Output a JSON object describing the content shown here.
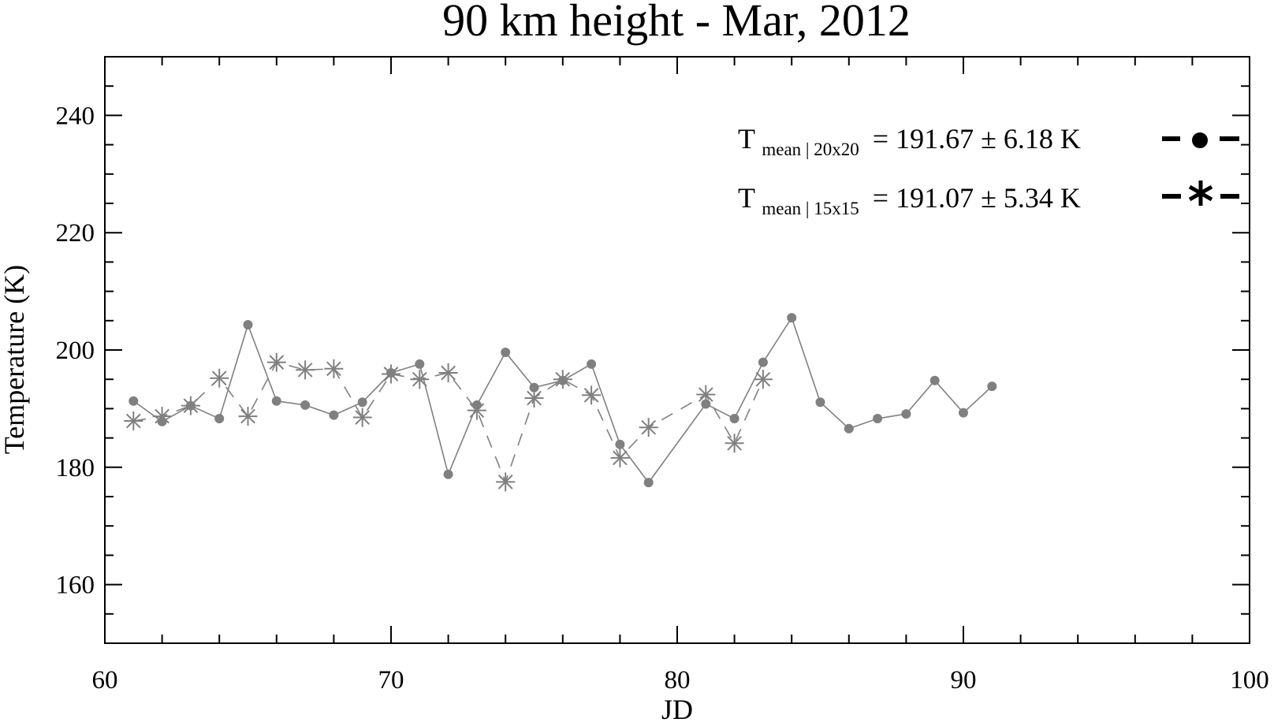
{
  "chart_data": {
    "type": "line",
    "title": "90 km height - Mar, 2012",
    "xlabel": "JD",
    "ylabel": "Temperature (K)",
    "xlim": [
      60,
      100
    ],
    "ylim": [
      150,
      250
    ],
    "x_ticks": [
      60,
      70,
      80,
      90,
      100
    ],
    "y_ticks": [
      160,
      180,
      200,
      220,
      240
    ],
    "grid": false,
    "legend_position": "top-right",
    "series": [
      {
        "marker": "dot",
        "line_style": "solid",
        "color": "#808080",
        "legend_prefix": "T",
        "legend_subscript": "mean | 20x20",
        "legend_value": "= 191.67 ± 6.18 K",
        "x": [
          61,
          62,
          63,
          64,
          65,
          66,
          67,
          68,
          69,
          70,
          71,
          72,
          73,
          74,
          75,
          76,
          77,
          78,
          79,
          81,
          82,
          83,
          84,
          85,
          86,
          87,
          88,
          89,
          90,
          91
        ],
        "y": [
          191.3,
          187.8,
          190.5,
          188.3,
          204.3,
          191.3,
          190.6,
          188.9,
          191.1,
          196.1,
          197.6,
          178.8,
          190.6,
          199.6,
          193.6,
          194.8,
          197.6,
          183.9,
          177.4,
          190.8,
          188.3,
          197.9,
          205.5,
          191.1,
          186.6,
          188.3,
          189.1,
          194.8,
          189.3,
          193.8
        ]
      },
      {
        "marker": "asterisk",
        "line_style": "dashed",
        "color": "#808080",
        "legend_prefix": "T",
        "legend_subscript": "mean | 15x15",
        "legend_value": "= 191.07 ± 5.34 K",
        "x": [
          61,
          62,
          63,
          64,
          65,
          66,
          67,
          68,
          69,
          70,
          71,
          72,
          73,
          74,
          75,
          76,
          77,
          78,
          79,
          81,
          82,
          83
        ],
        "y": [
          187.9,
          188.7,
          190.5,
          195.2,
          188.7,
          197.9,
          196.6,
          196.8,
          188.5,
          195.9,
          195.0,
          196.1,
          189.7,
          177.5,
          191.8,
          195.0,
          192.3,
          181.6,
          186.8,
          192.4,
          184.1,
          195.0
        ]
      }
    ]
  }
}
